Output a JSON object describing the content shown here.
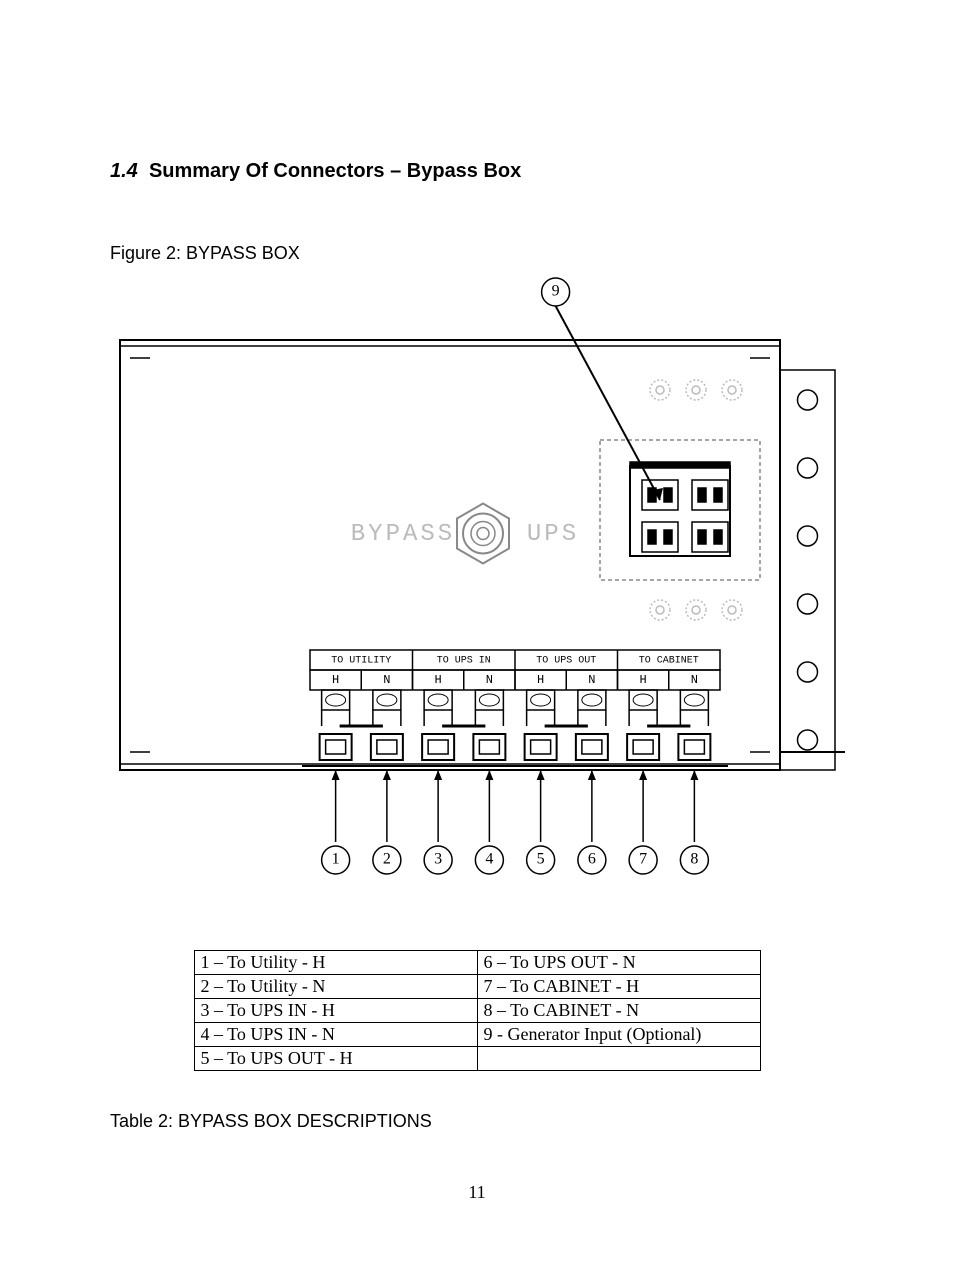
{
  "section": {
    "number": "1.4",
    "title": "Summary Of Connectors – Bypass Box"
  },
  "figure": {
    "caption": "Figure 2: BYPASS BOX",
    "switch_labels": {
      "left": "BYPASS",
      "right": "UPS"
    },
    "group_labels": [
      {
        "top": "TO UTILITY",
        "subL": "H",
        "subR": "N"
      },
      {
        "top": "TO UPS IN",
        "subL": "H",
        "subR": "N"
      },
      {
        "top": "TO UPS OUT",
        "subL": "H",
        "subR": "N"
      },
      {
        "top": "TO CABINET",
        "subL": "H",
        "subR": "N"
      }
    ],
    "callouts": [
      "1",
      "2",
      "3",
      "4",
      "5",
      "6",
      "7",
      "8",
      "9"
    ],
    "callout_radius": 14,
    "callout_font": 16,
    "font_mono": "monospace",
    "colors": {
      "stroke": "#000000",
      "fill": "#ffffff",
      "faint": "#888888",
      "light": "#bbbbbb"
    }
  },
  "table": {
    "caption": "Table 2: BYPASS BOX DESCRIPTIONS",
    "rows": [
      [
        "1 – To Utility - H",
        "6 – To UPS OUT - N"
      ],
      [
        "2 – To Utility - N",
        "7 – To CABINET - H"
      ],
      [
        "3 – To UPS IN - H",
        "8 – To CABINET - N"
      ],
      [
        "4 – To UPS IN - N",
        "9 - Generator Input (Optional)"
      ],
      [
        "5 – To UPS OUT - H",
        ""
      ]
    ]
  },
  "page_number": "11"
}
